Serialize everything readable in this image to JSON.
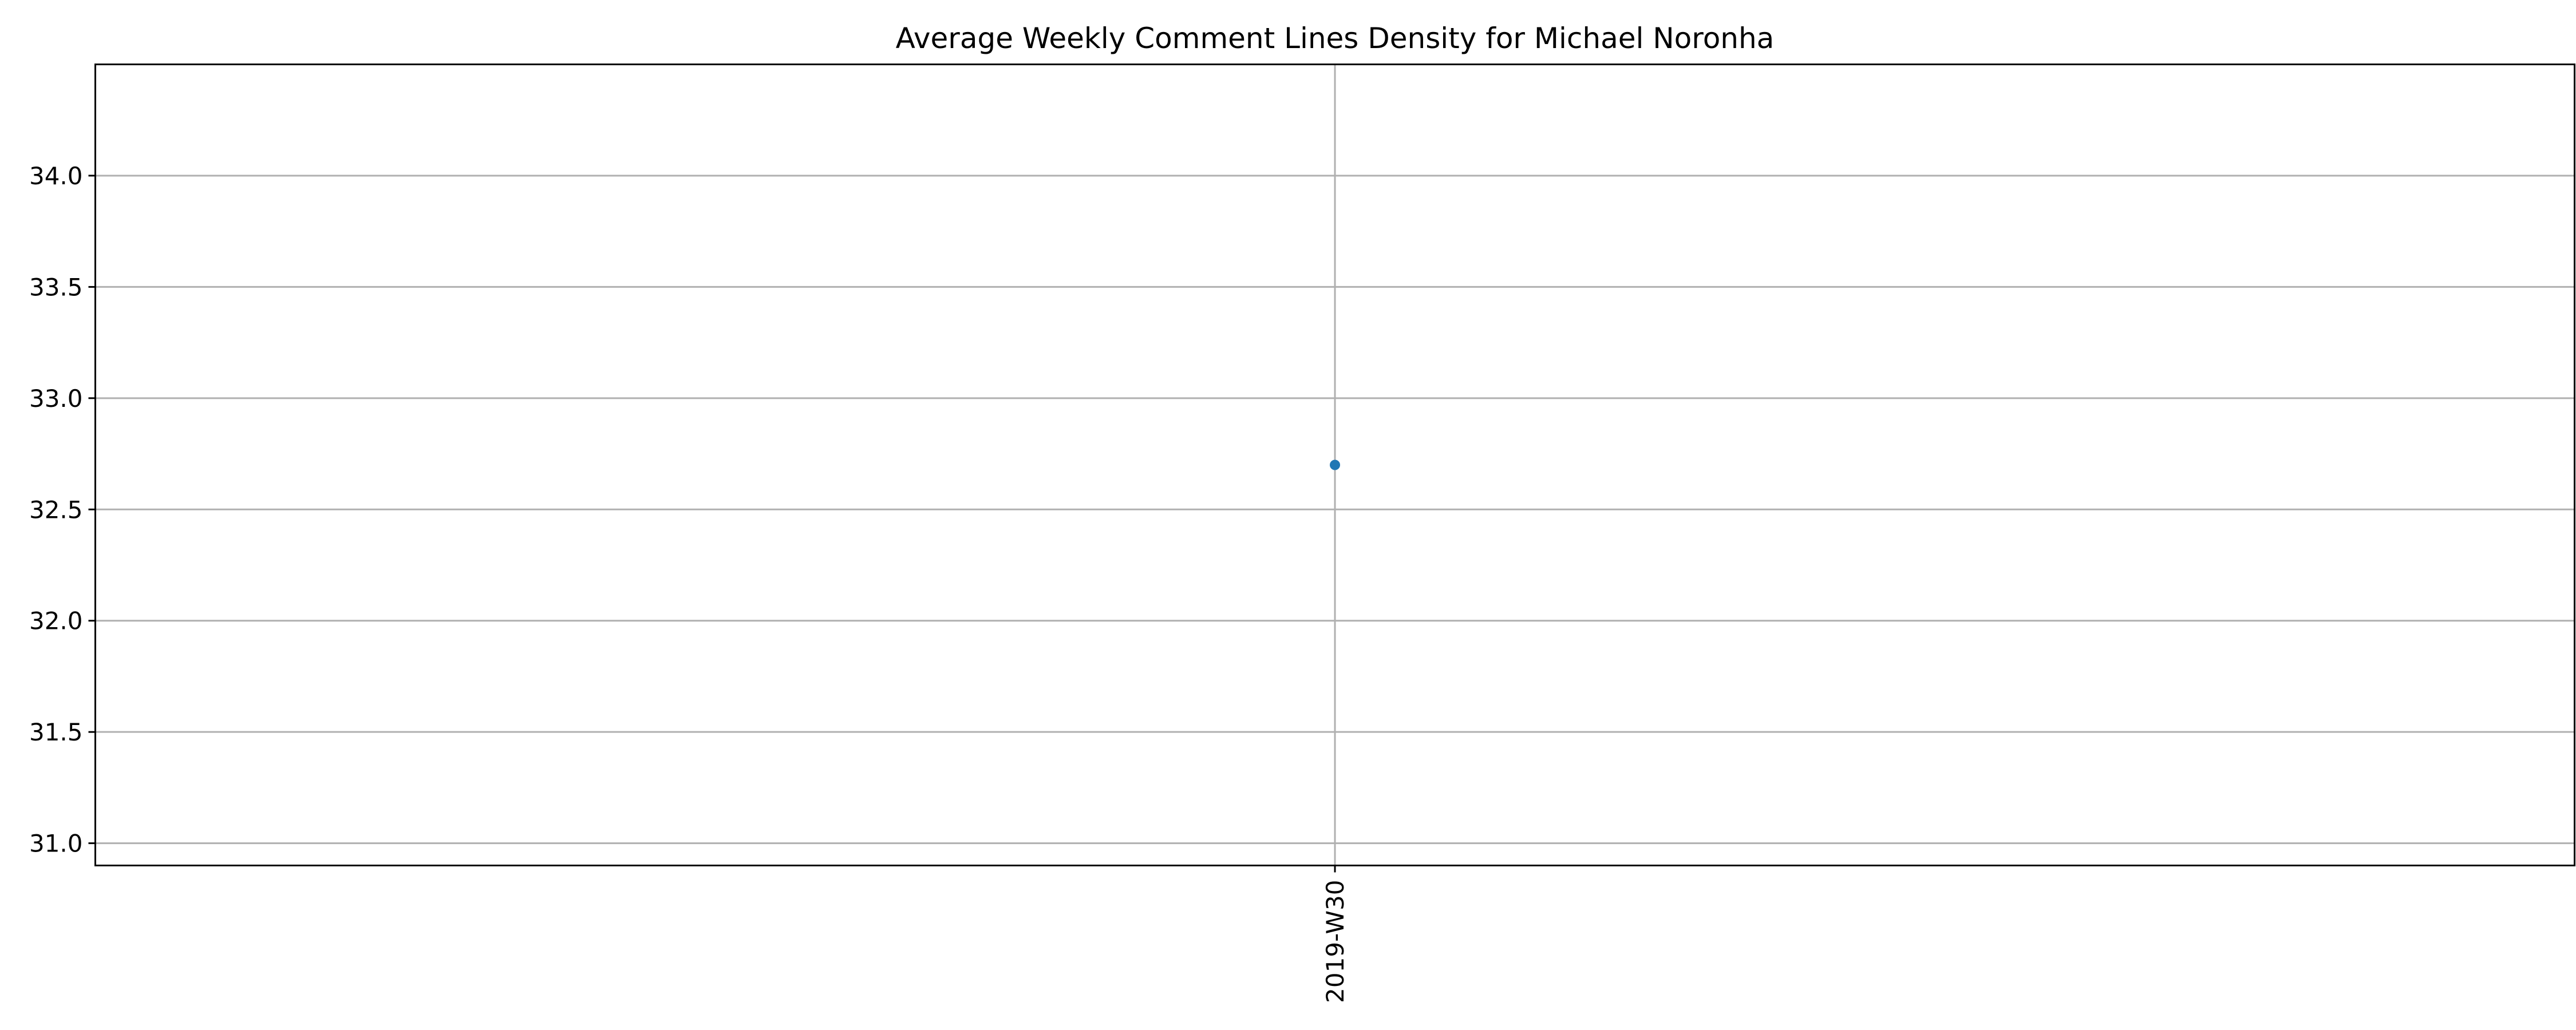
{
  "chart_data": {
    "type": "line",
    "title": "Average Weekly Comment Lines Density for Michael Noronha",
    "xlabel": "",
    "ylabel": "",
    "categories": [
      "2019-W30"
    ],
    "series": [
      {
        "values": [
          32.7
        ],
        "color": "#1f77b4"
      }
    ],
    "ylim": [
      30.9,
      34.5
    ],
    "yticks": [
      31.0,
      31.5,
      32.0,
      32.5,
      33.0,
      33.5,
      34.0
    ],
    "ytick_labels": [
      "31.0",
      "31.5",
      "32.0",
      "32.5",
      "33.0",
      "33.5",
      "34.0"
    ],
    "grid": true,
    "legend": "none",
    "marker": "dot",
    "x_tick_rotation": "vertical"
  }
}
